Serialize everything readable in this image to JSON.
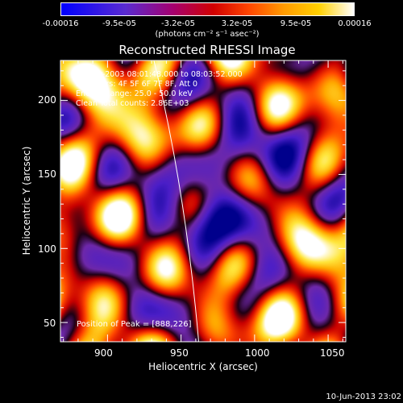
{
  "colorbar": {
    "ticks": [
      "-0.00016",
      "-9.5e-05",
      "-3.2e-05",
      "3.2e-05",
      "9.5e-05",
      "0.00016"
    ],
    "units": "(photons cm⁻² s⁻¹ asec⁻²)"
  },
  "chart_data": {
    "type": "heatmap",
    "title": "Reconstructed RHESSI Image",
    "xlabel": "Heliocentric X (arcsec)",
    "ylabel": "Heliocentric Y (arcsec)",
    "xlim": [
      868,
      1062
    ],
    "ylim": [
      37,
      227
    ],
    "xticks": [
      900,
      950,
      1000,
      1050
    ],
    "yticks": [
      50,
      100,
      150,
      200
    ],
    "clim": [
      -0.00016,
      0.00016
    ],
    "limb_x_at_top": 937,
    "limb_x_at_bottom": 962,
    "colormap": "rhessi blue-red-yellow-white",
    "annotations": {
      "time_range": "20-Mar-2003 08:01:48.000 to 08:03:52.000",
      "detectors": "Detectors: 4F 5F 6F 7F 8F, Att 0",
      "energy": "Energy Range: 25.0 - 50.0 keV",
      "clean": "Clean     Total counts: 2.86E+03",
      "peak": "Position of Peak = [888,226]"
    }
  },
  "timestamp": "10-Jun-2013 23:02"
}
